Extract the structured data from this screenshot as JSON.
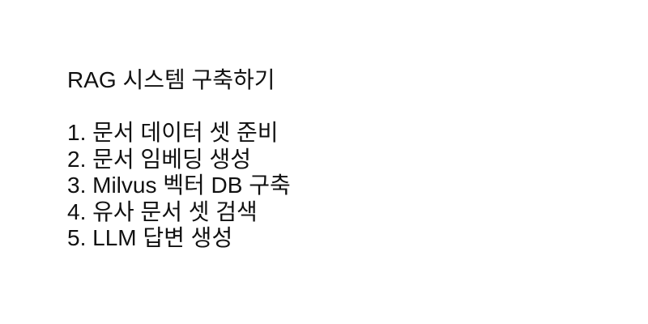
{
  "page": {
    "title": "RAG 시스템 구축하기",
    "steps": [
      "1. 문서 데이터 셋 준비",
      "2. 문서 임베딩 생성",
      "3. Milvus 벡터 DB 구축",
      "4. 유사 문서 셋 검색",
      "5. LLM 답변 생성"
    ]
  }
}
